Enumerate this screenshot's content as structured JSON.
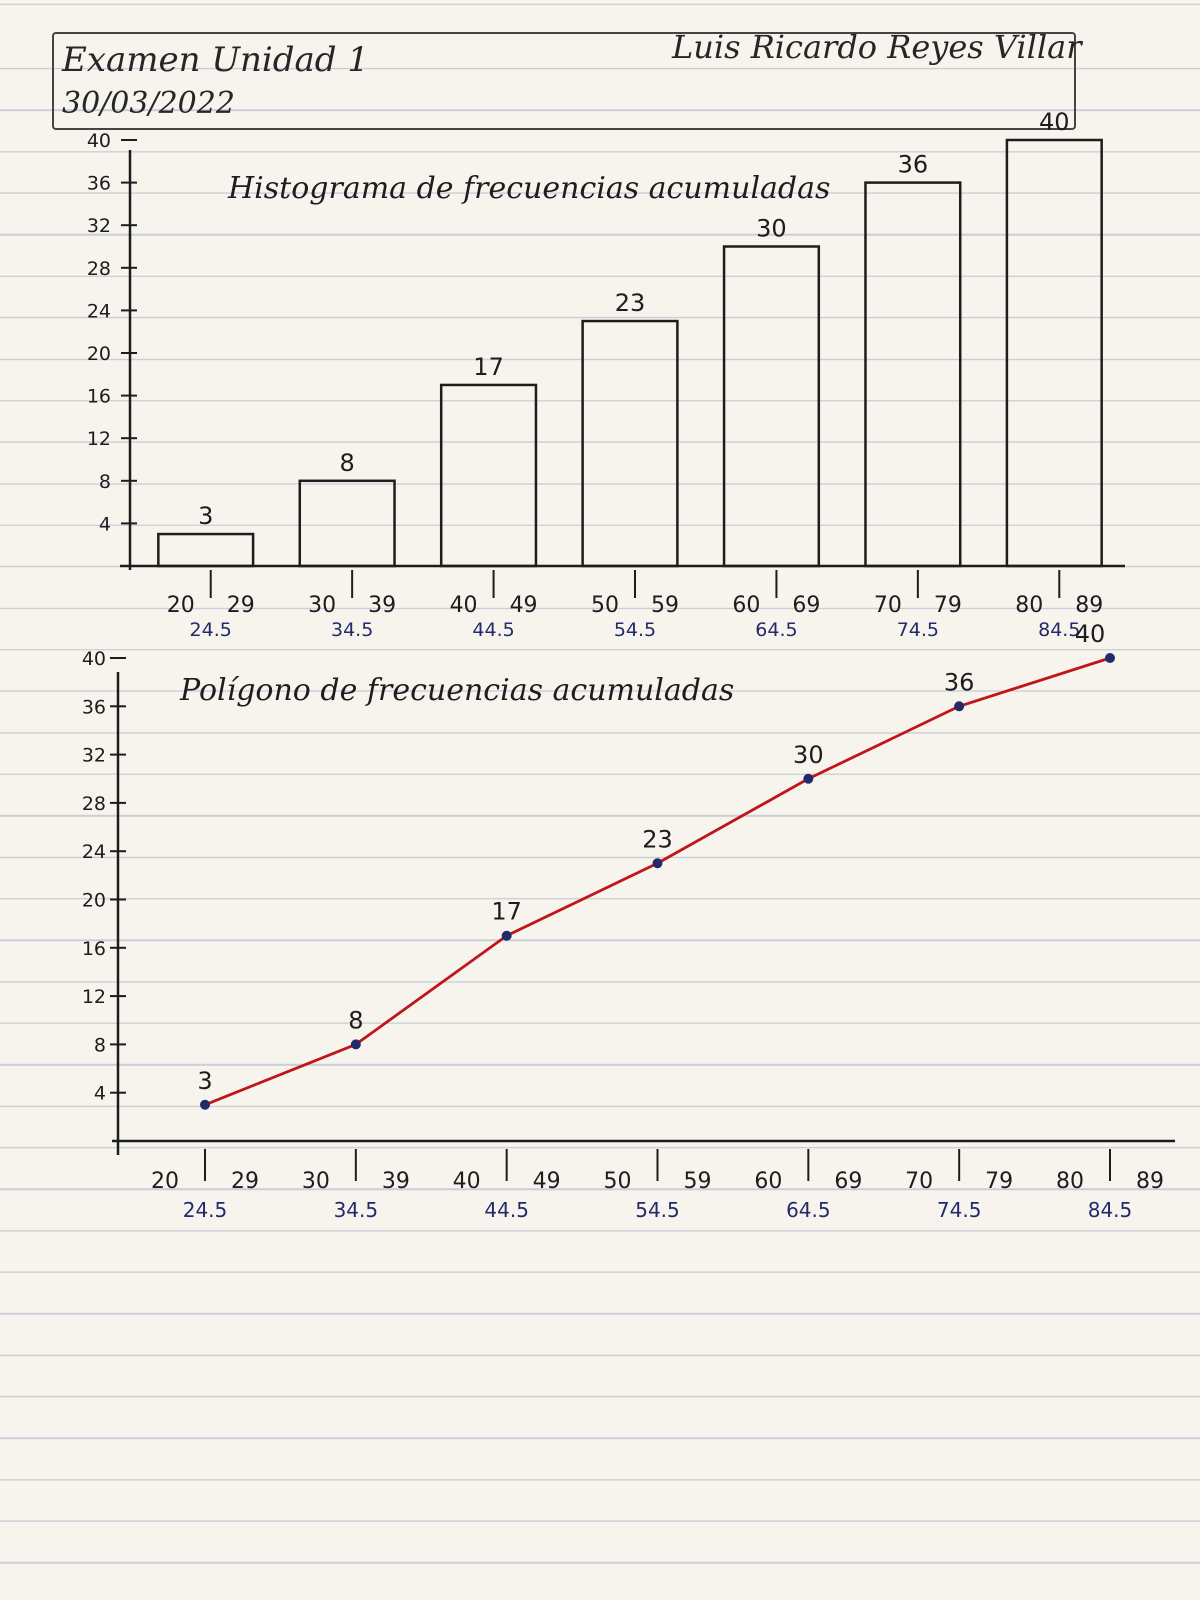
{
  "header": {
    "exam_title": "Examen Unidad 1",
    "date": "30/03/2022",
    "student_name": "Luis Ricardo Reyes Villar"
  },
  "colors": {
    "ink": "#1d1d1d",
    "midpoint_ink": "#232a6b",
    "polygon_line": "#c0151a"
  },
  "chart_data": [
    {
      "type": "bar",
      "title": "Histograma de frecuencias acumuladas",
      "class_limits": [
        "20",
        "29",
        "30",
        "39",
        "40",
        "49",
        "50",
        "59",
        "60",
        "69",
        "70",
        "79",
        "80",
        "89"
      ],
      "midpoints": [
        "24.5",
        "34.5",
        "44.5",
        "54.5",
        "64.5",
        "74.5",
        "84.5"
      ],
      "values": [
        3,
        8,
        17,
        23,
        30,
        36,
        40
      ],
      "data_labels": [
        "3",
        "8",
        "17",
        "23",
        "30",
        "36",
        "40"
      ],
      "y_ticks": [
        "4",
        "8",
        "12",
        "16",
        "20",
        "24",
        "28",
        "32",
        "36",
        "40"
      ],
      "ylim": [
        0,
        40
      ]
    },
    {
      "type": "line",
      "title": "Polígono de frecuencias acumuladas",
      "class_limits": [
        "20",
        "29",
        "30",
        "39",
        "40",
        "49",
        "50",
        "59",
        "60",
        "69",
        "70",
        "79",
        "80",
        "89"
      ],
      "x": [
        "24.5",
        "34.5",
        "44.5",
        "54.5",
        "64.5",
        "74.5",
        "84.5"
      ],
      "values": [
        3,
        8,
        17,
        23,
        30,
        36,
        40
      ],
      "data_labels": [
        "3",
        "8",
        "17",
        "23",
        "30",
        "36",
        "40"
      ],
      "y_ticks": [
        "4",
        "8",
        "12",
        "16",
        "20",
        "24",
        "28",
        "32",
        "36",
        "40"
      ],
      "ylim": [
        0,
        40
      ]
    }
  ]
}
